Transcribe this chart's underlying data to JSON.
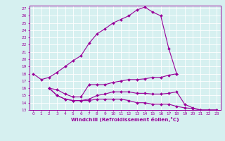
{
  "xlabel": "Windchill (Refroidissement éolien,°C)",
  "bg_color": "#d6f0f0",
  "grid_color": "#ffffff",
  "line_color": "#990099",
  "ylim": [
    13,
    27.4
  ],
  "xlim": [
    -0.5,
    23.5
  ],
  "yticks": [
    13,
    14,
    15,
    16,
    17,
    18,
    19,
    20,
    21,
    22,
    23,
    24,
    25,
    26,
    27
  ],
  "xticks": [
    0,
    1,
    2,
    3,
    4,
    5,
    6,
    7,
    8,
    9,
    10,
    11,
    12,
    13,
    14,
    15,
    16,
    17,
    18,
    19,
    20,
    21,
    22,
    23
  ],
  "main_x": [
    0,
    1,
    2,
    3,
    4,
    5,
    6,
    7,
    8,
    9,
    10,
    11,
    12,
    13,
    14,
    15,
    16,
    17,
    18
  ],
  "main_y": [
    18.0,
    17.2,
    17.5,
    18.2,
    19.0,
    19.8,
    20.5,
    22.2,
    23.5,
    24.2,
    25.0,
    25.5,
    26.0,
    26.8,
    27.2,
    26.5,
    26.0,
    21.5,
    18.0
  ],
  "line2_x": [
    2,
    3,
    4,
    5,
    6,
    7,
    8,
    9,
    10,
    11,
    12,
    13,
    14,
    15,
    16,
    17,
    18
  ],
  "line2_y": [
    16.0,
    15.8,
    15.2,
    14.8,
    14.8,
    16.5,
    16.5,
    16.5,
    16.8,
    17.0,
    17.2,
    17.2,
    17.3,
    17.5,
    17.5,
    17.8,
    18.0
  ],
  "line3_x": [
    2,
    3,
    4,
    5,
    6,
    7,
    8,
    9,
    10,
    11,
    12,
    13,
    14,
    15,
    16,
    17,
    18,
    19,
    20,
    21,
    22,
    23
  ],
  "line3_y": [
    16.0,
    15.0,
    14.5,
    14.3,
    14.3,
    14.3,
    14.5,
    14.5,
    14.5,
    14.5,
    14.3,
    14.0,
    14.0,
    13.8,
    13.8,
    13.8,
    13.5,
    13.3,
    13.2,
    13.0,
    13.0,
    13.0
  ],
  "line4_x": [
    2,
    3,
    4,
    5,
    6,
    7,
    8,
    9,
    10,
    11,
    12,
    13,
    14,
    15,
    16,
    17,
    18,
    19,
    20,
    21,
    22,
    23
  ],
  "line4_y": [
    16.0,
    15.0,
    14.5,
    14.3,
    14.3,
    14.5,
    15.0,
    15.2,
    15.5,
    15.5,
    15.5,
    15.3,
    15.3,
    15.2,
    15.2,
    15.3,
    15.5,
    13.8,
    13.3,
    13.0,
    13.0,
    13.0
  ],
  "tick_fontsize": 4.2,
  "xlabel_fontsize": 5.2,
  "marker_size": 2.0,
  "linewidth": 0.8
}
